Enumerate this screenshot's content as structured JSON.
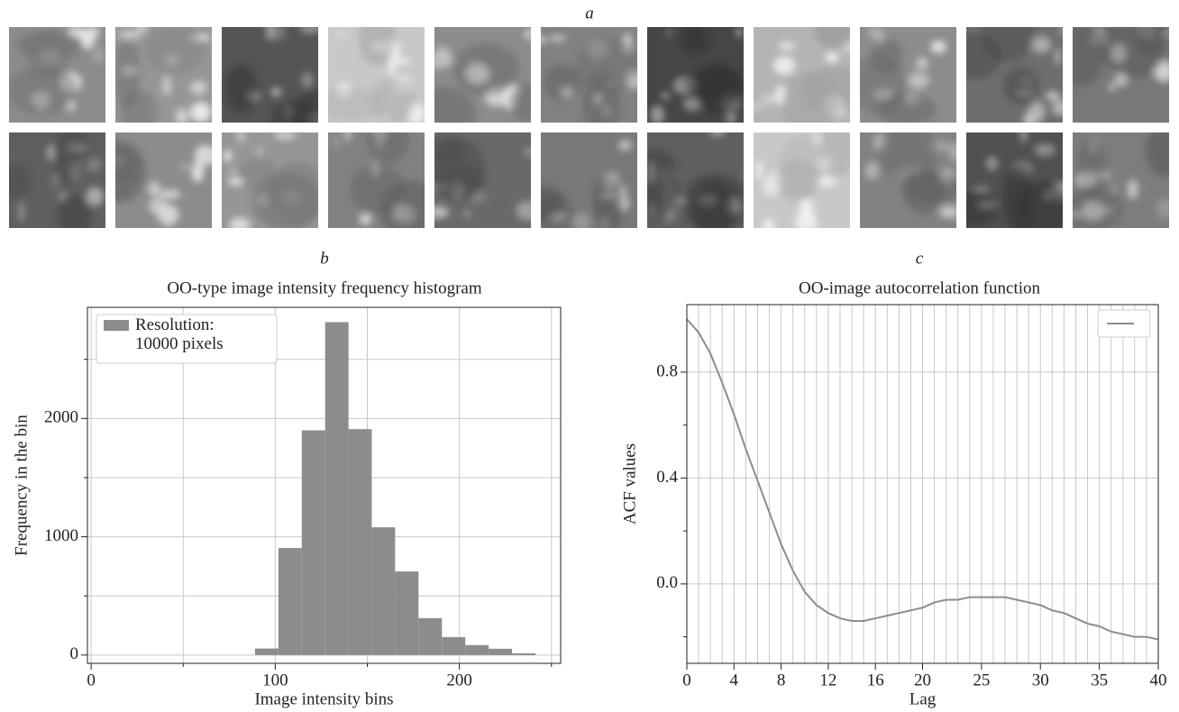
{
  "images_panel": {
    "label": "a"
  },
  "chart_data": [
    {
      "type": "histogram",
      "panel_label": "b",
      "title": "OO-type image intensity frequency histogram",
      "xlabel": "Image intensity bins",
      "ylabel": "Frequency in the bin",
      "bins": [
        89,
        101.7,
        114.4,
        127.1,
        139.8,
        152.4,
        165.1,
        177.8,
        190.5,
        203.2,
        215.9,
        228.6,
        241.3
      ],
      "series": [
        {
          "name": "Resolution:\n10000 pixels",
          "color": "#8c8c8c",
          "values": [
            55,
            905,
            1900,
            2815,
            1910,
            1080,
            707,
            312,
            152,
            84,
            53,
            15
          ]
        }
      ],
      "xlim": [
        -2,
        255
      ],
      "ylim": [
        -70,
        2940
      ],
      "xticks": [
        0,
        100,
        200
      ],
      "minor_xticks": [
        50,
        150,
        250
      ],
      "yticks": [
        0,
        1000,
        2000
      ],
      "minor_yticks": [
        500,
        1500,
        2500
      ],
      "grid": true,
      "legend": "upper left"
    },
    {
      "type": "line",
      "panel_label": "c",
      "title": "OO-image autocorrelation function",
      "xlabel": "Lag",
      "ylabel": "ACF values",
      "x": [
        0,
        1,
        2,
        3,
        4,
        5,
        6,
        7,
        8,
        9,
        10,
        11,
        12,
        13,
        14,
        15,
        16,
        17,
        18,
        19,
        20,
        21,
        22,
        23,
        24,
        25,
        26,
        27,
        28,
        29,
        30,
        31,
        32,
        33,
        34,
        35,
        36,
        37,
        38,
        39,
        40
      ],
      "series": [
        {
          "color": "#8c8c8c",
          "values": [
            1.0,
            0.95,
            0.87,
            0.76,
            0.64,
            0.51,
            0.39,
            0.27,
            0.15,
            0.05,
            -0.03,
            -0.08,
            -0.11,
            -0.13,
            -0.14,
            -0.14,
            -0.13,
            -0.12,
            -0.11,
            -0.1,
            -0.09,
            -0.07,
            -0.06,
            -0.06,
            -0.05,
            -0.05,
            -0.05,
            -0.05,
            -0.06,
            -0.07,
            -0.08,
            -0.1,
            -0.11,
            -0.13,
            -0.15,
            -0.16,
            -0.18,
            -0.19,
            -0.2,
            -0.2,
            -0.21
          ]
        }
      ],
      "xlim": [
        0,
        40
      ],
      "ylim": [
        -0.3,
        1.055
      ],
      "xticks": [
        0,
        4,
        8,
        12,
        16,
        20,
        25,
        30,
        35,
        40
      ],
      "grid_xticks": [
        0,
        1,
        2,
        3,
        4,
        5,
        6,
        7,
        8,
        9,
        10,
        11,
        12,
        13,
        14,
        15,
        16,
        17,
        18,
        19,
        20,
        21,
        22,
        23,
        24,
        25,
        26,
        27,
        28,
        29,
        30,
        31,
        32,
        33,
        34,
        35,
        36,
        37,
        38,
        39,
        40
      ],
      "yticks": [
        0.8,
        0.4,
        {
          "value": 0,
          "label": "0.0"
        }
      ],
      "minor_yticks": [
        0.6,
        0.2,
        -0.2
      ],
      "grid": true,
      "legend": "upper right"
    }
  ]
}
